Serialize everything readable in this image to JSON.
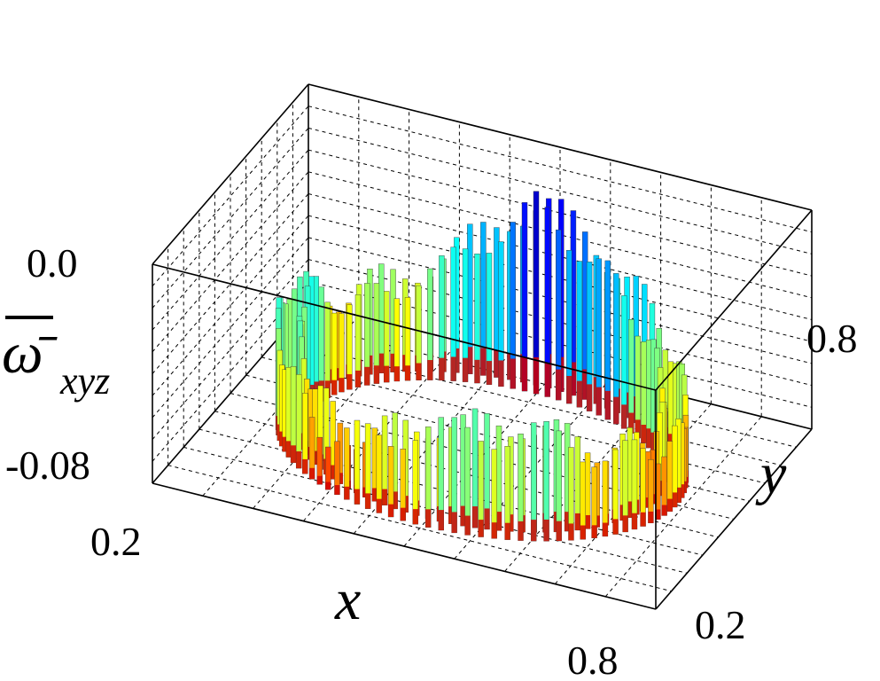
{
  "chart_data": {
    "type": "bar3d",
    "title": "",
    "xlabel": "x",
    "ylabel": "y",
    "zlabel": "ω̄",
    "zlabel_subscript": "xyz",
    "xlim": [
      0.2,
      0.8
    ],
    "ylim": [
      0.2,
      0.8
    ],
    "zlim": [
      -0.08,
      0.0
    ],
    "x_ticks": [
      "0.2",
      "0.8"
    ],
    "y_ticks": [
      "0.2",
      "0.8"
    ],
    "z_ticks": [
      "0.0",
      "-0.08"
    ],
    "grid": true,
    "colormap": "jet",
    "description_shape": "ring",
    "ring": {
      "center": [
        0.5,
        0.5
      ],
      "radius": 0.22
    },
    "values_sample": [
      {
        "angle_deg": 0,
        "value": -0.055
      },
      {
        "angle_deg": 30,
        "value": -0.048
      },
      {
        "angle_deg": 60,
        "value": -0.03
      },
      {
        "angle_deg": 90,
        "value": -0.012
      },
      {
        "angle_deg": 120,
        "value": -0.04
      },
      {
        "angle_deg": 150,
        "value": -0.05
      },
      {
        "angle_deg": 180,
        "value": -0.035
      },
      {
        "angle_deg": 210,
        "value": -0.045
      },
      {
        "angle_deg": 240,
        "value": -0.06
      },
      {
        "angle_deg": 270,
        "value": -0.045
      },
      {
        "angle_deg": 300,
        "value": -0.04
      },
      {
        "angle_deg": 330,
        "value": -0.052
      }
    ]
  }
}
